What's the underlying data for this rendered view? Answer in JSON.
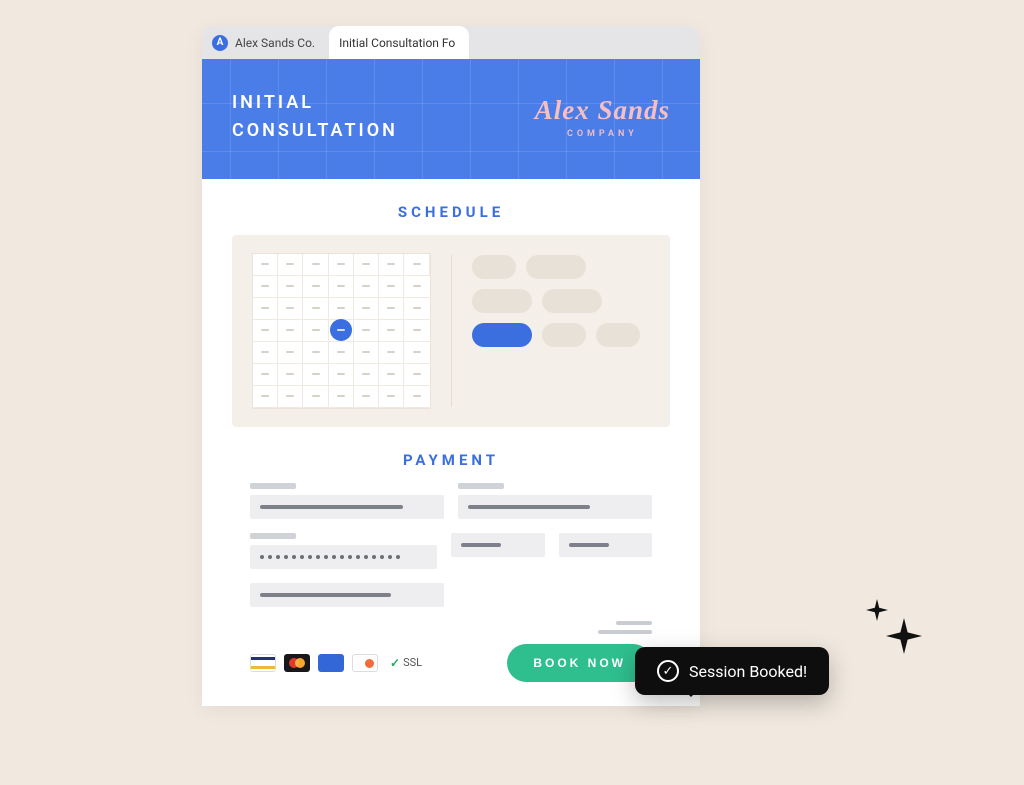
{
  "colors": {
    "page_bg": "#f1e9df",
    "hero_bg": "#4a7de8",
    "hero_grid": "rgba(255,255,255,0.12)",
    "accent_blue": "#3b6fe0",
    "brand_pink": "#f7bfc2",
    "schedule_bg": "#f4efe8",
    "slot_bg": "#e7e1d7",
    "field_bg": "#eeeef0",
    "book_btn": "#2fbf8f",
    "tooltip_bg": "#0e0e0e"
  },
  "tabs": [
    {
      "label": "Alex Sands Co.",
      "active": false,
      "favicon_bg": "#3b6fe0",
      "favicon_glyph": "A"
    },
    {
      "label": "Initial Consultation Fo",
      "active": true,
      "favicon_bg": "transparent",
      "favicon_glyph": ""
    }
  ],
  "hero": {
    "title_line1": "INITIAL",
    "title_line2": "CONSULTATION",
    "brand_name": "Alex Sands",
    "brand_sub": "COMPANY"
  },
  "sections": {
    "schedule_title": "SCHEDULE",
    "payment_title": "PAYMENT"
  },
  "calendar": {
    "cols": 7,
    "rows": 6,
    "selected_index": 17,
    "squiggle_rows": [
      3,
      4,
      5
    ]
  },
  "slots": {
    "items": [
      {
        "short": true,
        "active": false
      },
      {
        "short": false,
        "active": false
      },
      {
        "short": false,
        "active": false
      },
      {
        "short": false,
        "active": false
      },
      {
        "short": false,
        "active": true
      },
      {
        "short": true,
        "active": false
      },
      {
        "short": true,
        "active": false
      }
    ]
  },
  "payment": {
    "row1_field1_line_w": "82%",
    "row1_field2_line_w": "70%",
    "card_dots": 18,
    "row2_field2_line_w": "55%",
    "row2_field3_line_w": "55%",
    "row3_line_w": "75%",
    "summary_line1_w": 36,
    "summary_line2_w": 54
  },
  "pay_methods": {
    "ssl_label": "SSL",
    "cards": [
      {
        "name": "visa",
        "bg": "#ffffff",
        "bar_color": "#f0b73a",
        "bar2_color": "#24307c"
      },
      {
        "name": "mastercard",
        "bg": "#181818",
        "c1": "#e2392d",
        "c2": "#f59e1b"
      },
      {
        "name": "amex",
        "bg": "#3366d6"
      },
      {
        "name": "discover",
        "bg": "#ffffff",
        "dot": "#f26b3a"
      }
    ]
  },
  "cta": {
    "label": "BOOK NOW"
  },
  "toast": {
    "text": "Session Booked!"
  }
}
